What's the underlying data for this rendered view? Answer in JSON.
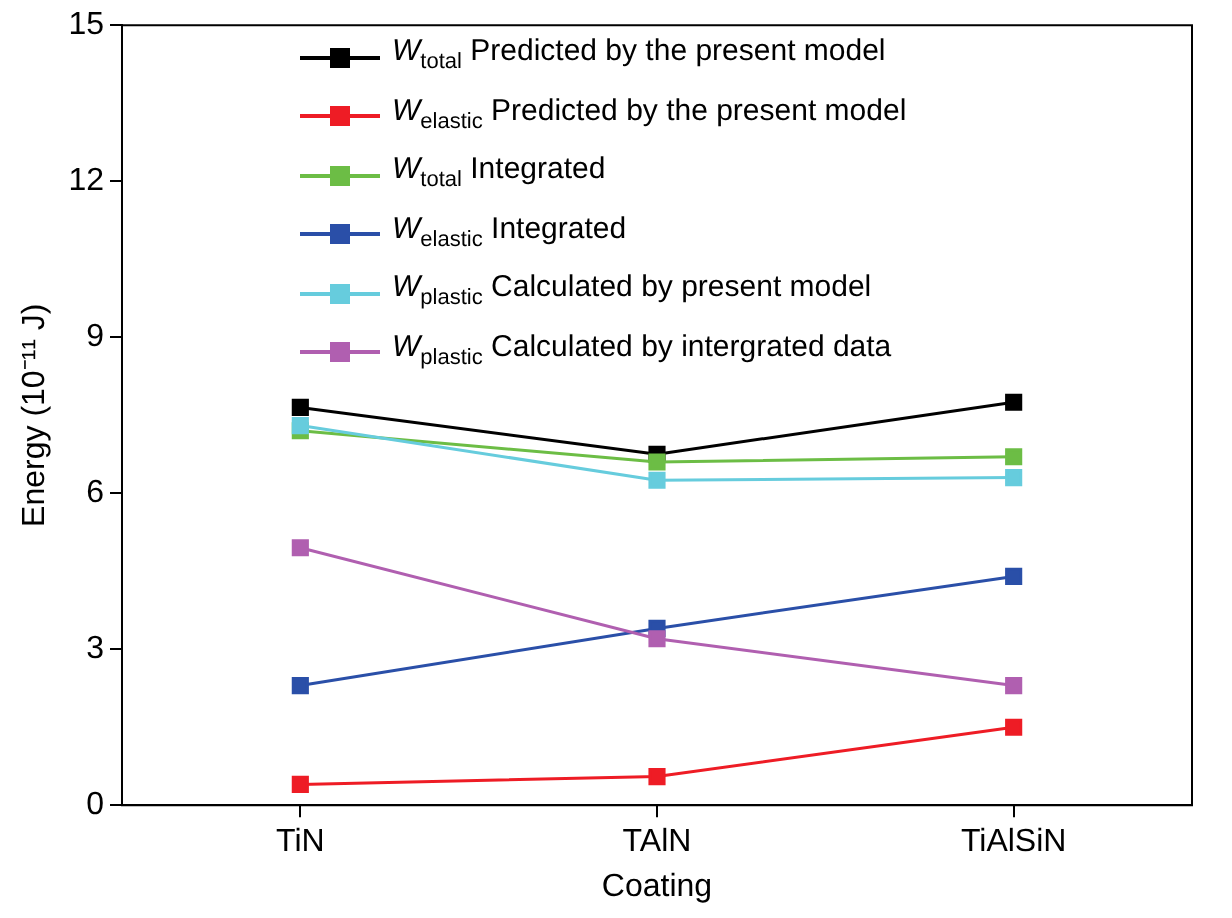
{
  "chart_data": {
    "type": "line",
    "xlabel": "Coating",
    "ylabel": "Energy (10⁻¹¹ J)",
    "categories": [
      "TiN",
      "TAlN",
      "TiAlSiN"
    ],
    "series": [
      {
        "name": "W$_{total}$ Predicted by the present model",
        "color": "#000000",
        "values": [
          7.65,
          6.75,
          7.75
        ]
      },
      {
        "name": "W$_{elastic}$ Predicted by the present model",
        "color": "#ee1c25",
        "values": [
          0.4,
          0.55,
          1.5
        ]
      },
      {
        "name": "W$_{total}$ Integrated",
        "color": "#6cbd45",
        "values": [
          7.2,
          6.6,
          6.7
        ]
      },
      {
        "name": "W$_{elastic}$ Integrated",
        "color": "#2a4fa8",
        "values": [
          2.3,
          3.4,
          4.4
        ]
      },
      {
        "name": "W$_{plastic}$ Calculated by present model",
        "color": "#66ccdd",
        "values": [
          7.3,
          6.25,
          6.3
        ]
      },
      {
        "name": "W$_{plastic}$ Calculated by intergrated data",
        "color": "#b05fb0",
        "values": [
          4.95,
          3.2,
          2.3
        ]
      }
    ],
    "ylim": [
      0,
      15
    ],
    "yticks": [
      0,
      3,
      6,
      9,
      12,
      15
    ],
    "grid": false,
    "legend": "top",
    "marker": "square",
    "line_style": "solid"
  }
}
